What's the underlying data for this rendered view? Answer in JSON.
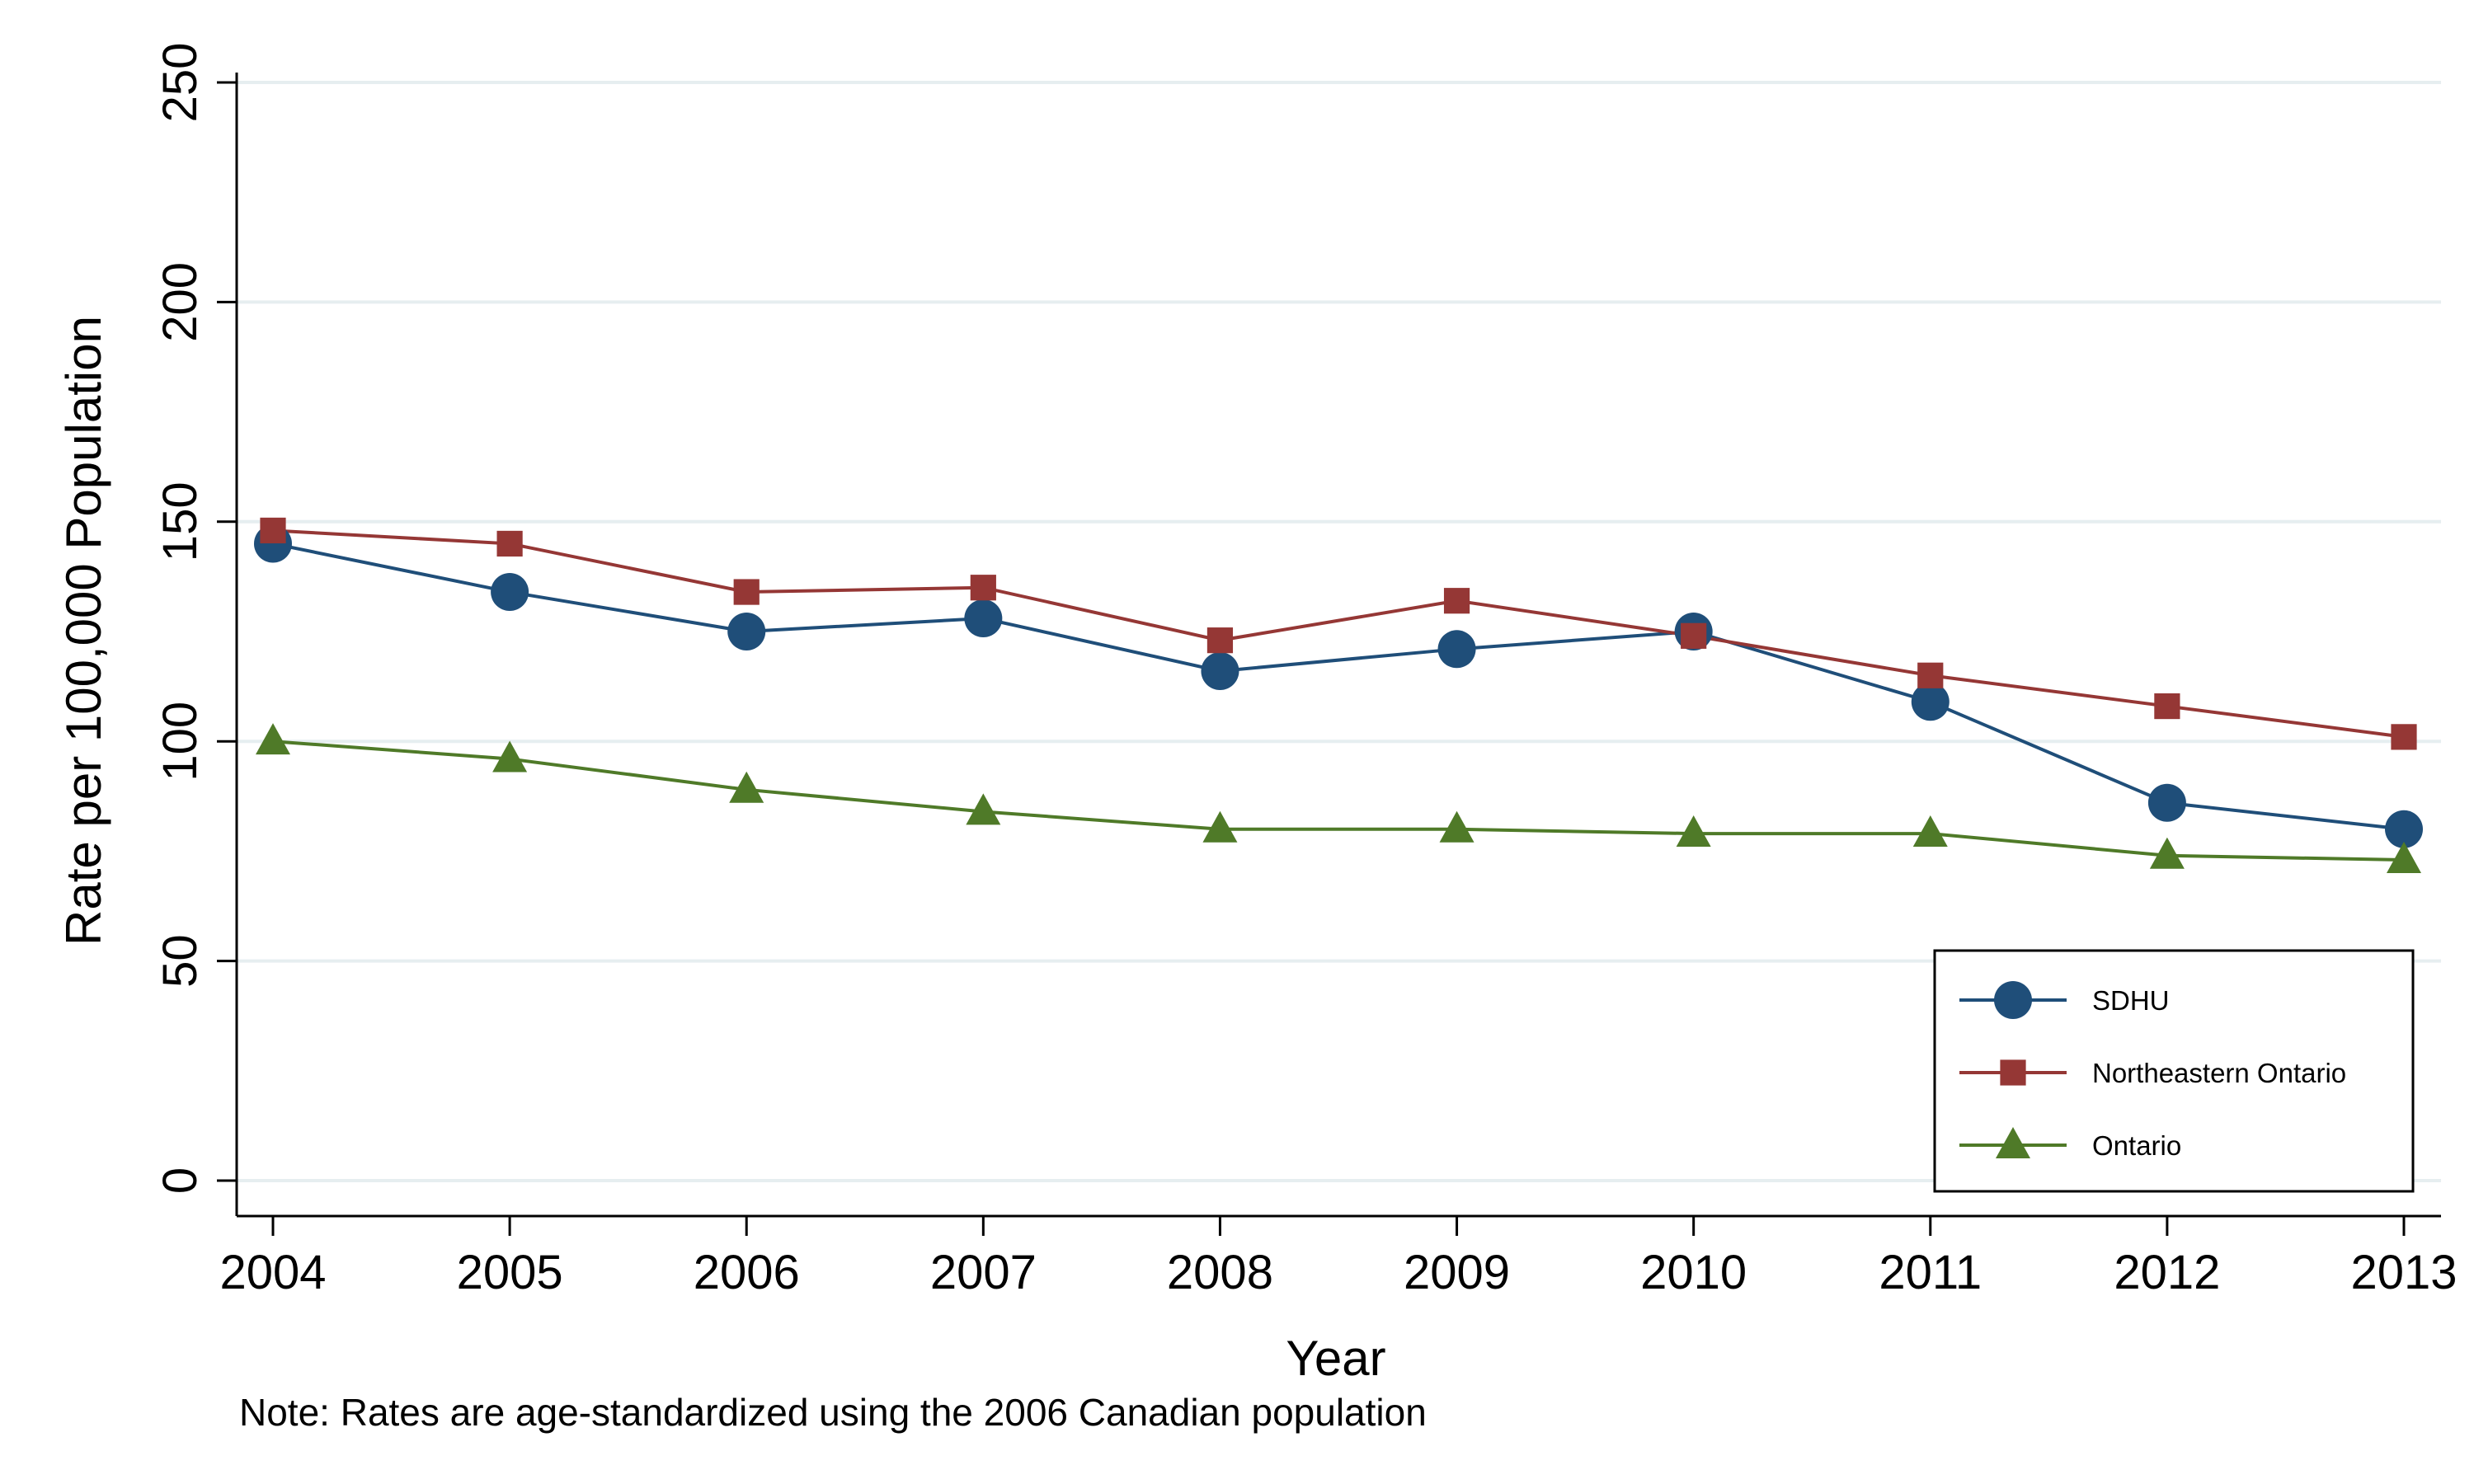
{
  "chart_data": {
    "type": "line",
    "title": "",
    "xlabel": "Year",
    "ylabel": "Rate per 100,000 Population",
    "note": "Note: Rates are age-standardized using the 2006 Canadian population",
    "x": [
      2004,
      2005,
      2006,
      2007,
      2008,
      2009,
      2010,
      2011,
      2012,
      2013
    ],
    "x_tick_labels": [
      "2004",
      "2005",
      "2006",
      "2007",
      "2008",
      "2009",
      "2010",
      "2011",
      "2012",
      "2013"
    ],
    "ylim": [
      0,
      250
    ],
    "y_ticks": [
      0,
      50,
      100,
      150,
      200,
      250
    ],
    "y_tick_labels": [
      "0",
      "50",
      "100",
      "150",
      "200",
      "250"
    ],
    "grid": true,
    "legend_position": "bottom-right",
    "series": [
      {
        "name": "SDHU",
        "color": "#1f4e79",
        "marker": "circle",
        "values": [
          145,
          134,
          125,
          128,
          116,
          121,
          125,
          109,
          86,
          80
        ]
      },
      {
        "name": "Northeastern Ontario",
        "color": "#953735",
        "marker": "square",
        "values": [
          148,
          145,
          134,
          135,
          123,
          132,
          124,
          115,
          108,
          101
        ]
      },
      {
        "name": "Ontario",
        "color": "#4f7a28",
        "marker": "triangle",
        "values": [
          100,
          96,
          89,
          84,
          80,
          80,
          79,
          79,
          74,
          73
        ]
      }
    ]
  }
}
